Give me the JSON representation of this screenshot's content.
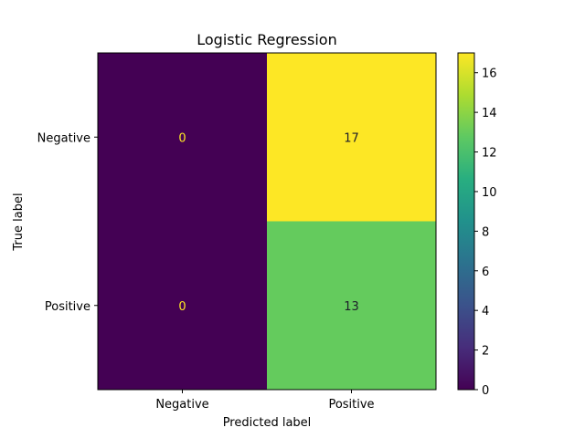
{
  "chart_data": {
    "type": "heatmap",
    "title": "Logistic Regression",
    "xlabel": "Predicted label",
    "ylabel": "True label",
    "x_categories": [
      "Negative",
      "Positive"
    ],
    "y_categories": [
      "Negative",
      "Positive"
    ],
    "matrix": [
      [
        0,
        17
      ],
      [
        0,
        13
      ]
    ],
    "value_labels": [
      [
        "0",
        "17"
      ],
      [
        "0",
        "13"
      ]
    ],
    "colorbar": {
      "ticks": [
        0,
        2,
        4,
        6,
        8,
        10,
        12,
        14,
        16
      ],
      "tick_labels": [
        "0",
        "2",
        "4",
        "6",
        "8",
        "10",
        "12",
        "14",
        "16"
      ],
      "range": [
        0,
        17
      ]
    },
    "colormap": "viridis",
    "colors": {
      "low": "#440154",
      "high": "#fde725",
      "cell_13": "#64cb5d",
      "text_on_dark": "#fde725",
      "text_on_light": "#1e1e2a"
    },
    "grid": false
  }
}
